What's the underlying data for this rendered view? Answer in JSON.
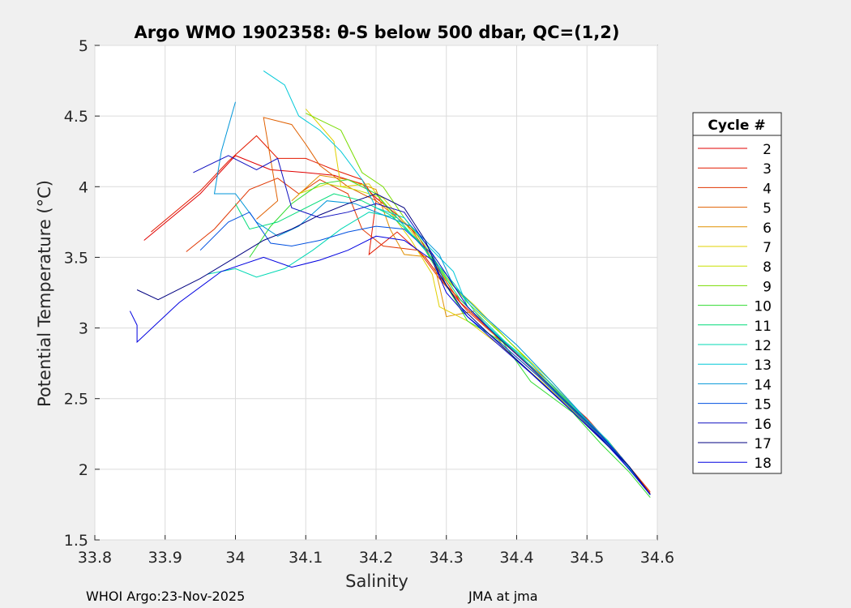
{
  "chart_data": {
    "type": "line",
    "title": "Argo WMO 1902358: θ-S below 500 dbar,  QC=(1,2)",
    "xlabel": "Salinity",
    "ylabel": "Potential Temperature (°C)",
    "xlim": [
      33.8,
      34.6
    ],
    "ylim": [
      1.5,
      5
    ],
    "xticks": [
      "33.8",
      "33.9",
      "34",
      "34.1",
      "34.2",
      "34.3",
      "34.4",
      "34.5",
      "34.6"
    ],
    "yticks": [
      "1.5",
      "2",
      "2.5",
      "3",
      "3.5",
      "4",
      "4.5",
      "5"
    ],
    "grid": true,
    "legend_title": "Cycle #",
    "legend_position": "right",
    "series": [
      {
        "name": "2",
        "color": "#e00000",
        "points": [
          [
            33.87,
            3.62
          ],
          [
            33.95,
            3.95
          ],
          [
            34.0,
            4.22
          ],
          [
            34.05,
            4.12
          ],
          [
            34.1,
            4.1
          ],
          [
            34.14,
            4.08
          ],
          [
            34.18,
            4.02
          ],
          [
            34.2,
            3.92
          ],
          [
            34.23,
            3.8
          ],
          [
            34.26,
            3.65
          ],
          [
            34.29,
            3.4
          ],
          [
            34.32,
            3.18
          ],
          [
            34.37,
            2.95
          ],
          [
            34.42,
            2.72
          ],
          [
            34.47,
            2.48
          ],
          [
            34.52,
            2.22
          ],
          [
            34.56,
            2.02
          ],
          [
            34.59,
            1.82
          ]
        ]
      },
      {
        "name": "3",
        "color": "#e31a00",
        "points": [
          [
            33.88,
            3.68
          ],
          [
            33.95,
            3.97
          ],
          [
            33.99,
            4.18
          ],
          [
            34.03,
            4.36
          ],
          [
            34.06,
            4.2
          ],
          [
            34.1,
            4.2
          ],
          [
            34.14,
            4.12
          ],
          [
            34.18,
            4.05
          ],
          [
            34.2,
            3.9
          ],
          [
            34.19,
            3.52
          ],
          [
            34.23,
            3.68
          ],
          [
            34.27,
            3.5
          ],
          [
            34.3,
            3.3
          ],
          [
            34.34,
            3.1
          ],
          [
            34.39,
            2.86
          ],
          [
            34.44,
            2.63
          ],
          [
            34.5,
            2.36
          ],
          [
            34.55,
            2.08
          ],
          [
            34.59,
            1.83
          ]
        ]
      },
      {
        "name": "4",
        "color": "#e03500",
        "points": [
          [
            33.93,
            3.54
          ],
          [
            33.97,
            3.7
          ],
          [
            34.02,
            3.98
          ],
          [
            34.06,
            4.06
          ],
          [
            34.09,
            3.95
          ],
          [
            34.12,
            4.05
          ],
          [
            34.16,
            3.95
          ],
          [
            34.18,
            3.7
          ],
          [
            34.21,
            3.58
          ],
          [
            34.26,
            3.55
          ],
          [
            34.29,
            3.35
          ],
          [
            34.33,
            3.12
          ],
          [
            34.38,
            2.9
          ],
          [
            34.43,
            2.68
          ],
          [
            34.48,
            2.44
          ],
          [
            34.53,
            2.2
          ],
          [
            34.59,
            1.84
          ]
        ]
      },
      {
        "name": "5",
        "color": "#e06000",
        "points": [
          [
            34.03,
            3.77
          ],
          [
            34.06,
            3.9
          ],
          [
            34.04,
            4.49
          ],
          [
            34.08,
            4.44
          ],
          [
            34.1,
            4.3
          ],
          [
            34.12,
            4.15
          ],
          [
            34.16,
            4.0
          ],
          [
            34.2,
            3.9
          ],
          [
            34.25,
            3.7
          ],
          [
            34.28,
            3.48
          ],
          [
            34.31,
            3.25
          ],
          [
            34.35,
            3.05
          ],
          [
            34.4,
            2.82
          ],
          [
            34.45,
            2.6
          ],
          [
            34.5,
            2.35
          ],
          [
            34.55,
            2.08
          ],
          [
            34.59,
            1.82
          ]
        ]
      },
      {
        "name": "6",
        "color": "#e09000",
        "points": [
          [
            34.08,
            3.9
          ],
          [
            34.12,
            4.08
          ],
          [
            34.16,
            4.05
          ],
          [
            34.2,
            3.98
          ],
          [
            34.22,
            3.7
          ],
          [
            34.24,
            3.52
          ],
          [
            34.28,
            3.5
          ],
          [
            34.29,
            3.3
          ],
          [
            34.3,
            3.08
          ],
          [
            34.34,
            3.12
          ],
          [
            34.38,
            2.88
          ],
          [
            34.44,
            2.62
          ],
          [
            34.5,
            2.34
          ],
          [
            34.55,
            2.08
          ],
          [
            34.59,
            1.82
          ]
        ]
      },
      {
        "name": "7",
        "color": "#e0d000",
        "points": [
          [
            34.1,
            4.55
          ],
          [
            34.14,
            4.32
          ],
          [
            34.15,
            4.0
          ],
          [
            34.19,
            4.02
          ],
          [
            34.22,
            3.82
          ],
          [
            34.25,
            3.62
          ],
          [
            34.28,
            3.38
          ],
          [
            34.29,
            3.15
          ],
          [
            34.33,
            3.05
          ],
          [
            34.38,
            2.86
          ],
          [
            34.44,
            2.6
          ],
          [
            34.5,
            2.32
          ],
          [
            34.55,
            2.06
          ],
          [
            34.59,
            1.82
          ]
        ]
      },
      {
        "name": "8",
        "color": "#c8e000",
        "points": [
          [
            34.09,
            3.95
          ],
          [
            34.13,
            4.02
          ],
          [
            34.17,
            3.98
          ],
          [
            34.21,
            3.92
          ],
          [
            34.24,
            3.75
          ],
          [
            34.27,
            3.55
          ],
          [
            34.3,
            3.34
          ],
          [
            34.34,
            3.16
          ],
          [
            34.39,
            2.9
          ],
          [
            34.45,
            2.62
          ],
          [
            34.5,
            2.34
          ],
          [
            34.55,
            2.08
          ],
          [
            34.59,
            1.82
          ]
        ]
      },
      {
        "name": "9",
        "color": "#78dc00",
        "points": [
          [
            34.1,
            4.52
          ],
          [
            34.15,
            4.4
          ],
          [
            34.18,
            4.1
          ],
          [
            34.21,
            4.0
          ],
          [
            34.24,
            3.78
          ],
          [
            34.27,
            3.58
          ],
          [
            34.3,
            3.36
          ],
          [
            34.33,
            3.18
          ],
          [
            34.38,
            2.95
          ],
          [
            34.43,
            2.7
          ],
          [
            34.48,
            2.44
          ],
          [
            34.53,
            2.2
          ],
          [
            34.59,
            1.82
          ]
        ]
      },
      {
        "name": "10",
        "color": "#30dc30",
        "points": [
          [
            34.02,
            3.5
          ],
          [
            34.05,
            3.72
          ],
          [
            34.08,
            3.88
          ],
          [
            34.12,
            4.02
          ],
          [
            34.16,
            4.05
          ],
          [
            34.2,
            3.95
          ],
          [
            34.23,
            3.78
          ],
          [
            34.27,
            3.55
          ],
          [
            34.3,
            3.3
          ],
          [
            34.33,
            3.05
          ],
          [
            34.38,
            2.9
          ],
          [
            34.42,
            2.62
          ],
          [
            34.48,
            2.4
          ],
          [
            34.52,
            2.18
          ],
          [
            34.56,
            1.98
          ],
          [
            34.59,
            1.8
          ]
        ]
      },
      {
        "name": "11",
        "color": "#00dc78",
        "points": [
          [
            34.0,
            3.88
          ],
          [
            34.02,
            3.7
          ],
          [
            34.06,
            3.75
          ],
          [
            34.1,
            3.85
          ],
          [
            34.14,
            3.95
          ],
          [
            34.18,
            3.9
          ],
          [
            34.22,
            3.8
          ],
          [
            34.26,
            3.62
          ],
          [
            34.29,
            3.42
          ],
          [
            34.32,
            3.2
          ],
          [
            34.36,
            3.0
          ],
          [
            34.41,
            2.78
          ],
          [
            34.46,
            2.52
          ],
          [
            34.51,
            2.28
          ],
          [
            34.56,
            2.02
          ],
          [
            34.59,
            1.82
          ]
        ]
      },
      {
        "name": "12",
        "color": "#00d8b4",
        "points": [
          [
            33.96,
            3.38
          ],
          [
            34.0,
            3.42
          ],
          [
            34.03,
            3.36
          ],
          [
            34.07,
            3.42
          ],
          [
            34.11,
            3.55
          ],
          [
            34.15,
            3.7
          ],
          [
            34.19,
            3.82
          ],
          [
            34.23,
            3.78
          ],
          [
            34.27,
            3.55
          ],
          [
            34.31,
            3.32
          ],
          [
            34.34,
            3.12
          ],
          [
            34.38,
            2.92
          ],
          [
            34.43,
            2.68
          ],
          [
            34.48,
            2.44
          ],
          [
            34.53,
            2.2
          ],
          [
            34.59,
            1.82
          ]
        ]
      },
      {
        "name": "13",
        "color": "#00c8d8",
        "points": [
          [
            34.04,
            4.82
          ],
          [
            34.07,
            4.72
          ],
          [
            34.09,
            4.5
          ],
          [
            34.12,
            4.4
          ],
          [
            34.15,
            4.25
          ],
          [
            34.18,
            4.05
          ],
          [
            34.2,
            3.85
          ],
          [
            34.24,
            3.78
          ],
          [
            34.27,
            3.6
          ],
          [
            34.31,
            3.4
          ],
          [
            34.33,
            3.15
          ],
          [
            34.37,
            2.96
          ],
          [
            34.42,
            2.75
          ],
          [
            34.47,
            2.5
          ],
          [
            34.52,
            2.25
          ],
          [
            34.56,
            2.02
          ],
          [
            34.59,
            1.82
          ]
        ]
      },
      {
        "name": "14",
        "color": "#0096d8",
        "points": [
          [
            34.0,
            4.6
          ],
          [
            33.98,
            4.25
          ],
          [
            33.97,
            3.95
          ],
          [
            34.0,
            3.95
          ],
          [
            34.03,
            3.75
          ],
          [
            34.06,
            3.65
          ],
          [
            34.09,
            3.72
          ],
          [
            34.13,
            3.9
          ],
          [
            34.17,
            3.88
          ],
          [
            34.21,
            3.8
          ],
          [
            34.25,
            3.72
          ],
          [
            34.29,
            3.52
          ],
          [
            34.31,
            3.3
          ],
          [
            34.35,
            3.1
          ],
          [
            34.4,
            2.88
          ],
          [
            34.45,
            2.62
          ],
          [
            34.5,
            2.35
          ],
          [
            34.55,
            2.08
          ],
          [
            34.59,
            1.82
          ]
        ]
      },
      {
        "name": "15",
        "color": "#0050e0",
        "points": [
          [
            33.95,
            3.55
          ],
          [
            33.99,
            3.75
          ],
          [
            34.02,
            3.82
          ],
          [
            34.05,
            3.6
          ],
          [
            34.08,
            3.58
          ],
          [
            34.12,
            3.62
          ],
          [
            34.16,
            3.68
          ],
          [
            34.2,
            3.72
          ],
          [
            34.24,
            3.7
          ],
          [
            34.28,
            3.52
          ],
          [
            34.3,
            3.3
          ],
          [
            34.33,
            3.08
          ],
          [
            34.38,
            2.88
          ],
          [
            34.43,
            2.66
          ],
          [
            34.48,
            2.42
          ],
          [
            34.53,
            2.18
          ],
          [
            34.59,
            1.82
          ]
        ]
      },
      {
        "name": "16",
        "color": "#1010c0",
        "points": [
          [
            33.94,
            4.1
          ],
          [
            33.99,
            4.22
          ],
          [
            34.03,
            4.12
          ],
          [
            34.06,
            4.2
          ],
          [
            34.08,
            3.85
          ],
          [
            34.12,
            3.78
          ],
          [
            34.16,
            3.82
          ],
          [
            34.2,
            3.88
          ],
          [
            34.24,
            3.82
          ],
          [
            34.27,
            3.6
          ],
          [
            34.3,
            3.38
          ],
          [
            34.33,
            3.15
          ],
          [
            34.37,
            2.95
          ],
          [
            34.42,
            2.72
          ],
          [
            34.47,
            2.48
          ],
          [
            34.52,
            2.24
          ],
          [
            34.56,
            2.02
          ],
          [
            34.59,
            1.82
          ]
        ]
      },
      {
        "name": "17",
        "color": "#000080",
        "points": [
          [
            33.86,
            3.27
          ],
          [
            33.89,
            3.2
          ],
          [
            33.95,
            3.35
          ],
          [
            34.0,
            3.5
          ],
          [
            34.04,
            3.62
          ],
          [
            34.08,
            3.7
          ],
          [
            34.12,
            3.8
          ],
          [
            34.16,
            3.88
          ],
          [
            34.2,
            3.95
          ],
          [
            34.24,
            3.85
          ],
          [
            34.27,
            3.62
          ],
          [
            34.29,
            3.38
          ],
          [
            34.32,
            3.15
          ],
          [
            34.36,
            2.96
          ],
          [
            34.41,
            2.73
          ],
          [
            34.46,
            2.5
          ],
          [
            34.51,
            2.26
          ],
          [
            34.56,
            2.02
          ],
          [
            34.59,
            1.82
          ]
        ]
      },
      {
        "name": "18",
        "color": "#0000e0",
        "points": [
          [
            33.85,
            3.12
          ],
          [
            33.86,
            3.02
          ],
          [
            33.86,
            2.9
          ],
          [
            33.92,
            3.18
          ],
          [
            33.98,
            3.4
          ],
          [
            34.04,
            3.5
          ],
          [
            34.08,
            3.43
          ],
          [
            34.12,
            3.48
          ],
          [
            34.16,
            3.55
          ],
          [
            34.2,
            3.65
          ],
          [
            34.24,
            3.62
          ],
          [
            34.28,
            3.48
          ],
          [
            34.3,
            3.25
          ],
          [
            34.33,
            3.08
          ],
          [
            34.37,
            2.9
          ],
          [
            34.42,
            2.68
          ],
          [
            34.47,
            2.45
          ],
          [
            34.52,
            2.22
          ],
          [
            34.56,
            2.0
          ],
          [
            34.59,
            1.82
          ]
        ]
      }
    ]
  },
  "footer": {
    "left": "WHOI Argo:23-Nov-2025",
    "right": "JMA at jma"
  }
}
